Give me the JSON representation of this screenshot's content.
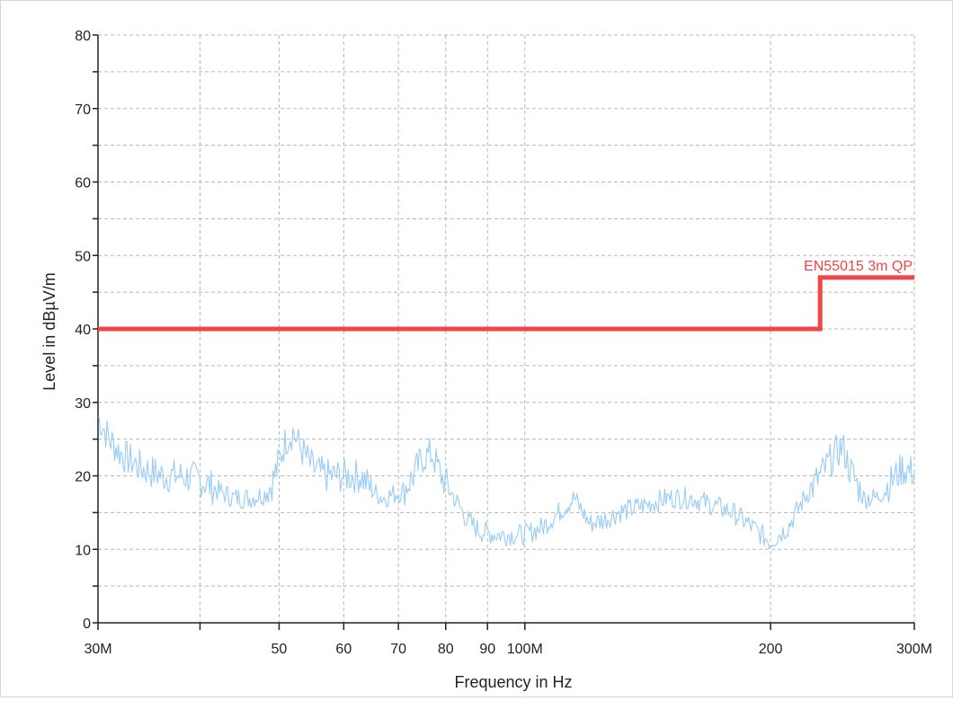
{
  "chart_data": {
    "type": "line",
    "title": "",
    "xlabel": "Frequency in Hz",
    "ylabel": "Level in dBµV/m",
    "x_scale": "log",
    "xlim": [
      30000000,
      300000000
    ],
    "ylim": [
      0,
      80
    ],
    "grid": true,
    "y_ticks": [
      0,
      10,
      20,
      30,
      40,
      50,
      60,
      70,
      80
    ],
    "x_ticks": [
      {
        "value": 30000000,
        "label": "30M"
      },
      {
        "value": 40000000,
        "label": ""
      },
      {
        "value": 50000000,
        "label": "50"
      },
      {
        "value": 60000000,
        "label": "60"
      },
      {
        "value": 70000000,
        "label": "70"
      },
      {
        "value": 80000000,
        "label": "80"
      },
      {
        "value": 90000000,
        "label": "90"
      },
      {
        "value": 100000000,
        "label": "100M"
      },
      {
        "value": 200000000,
        "label": "200"
      },
      {
        "value": 300000000,
        "label": "300M"
      }
    ],
    "series": [
      {
        "name": "",
        "role": "measurement",
        "color": "#99ccf5",
        "x": [
          30000000,
          31000000,
          32000000,
          33000000,
          34000000,
          35000000,
          36000000,
          38000000,
          40000000,
          42000000,
          44000000,
          46000000,
          48000000,
          49000000,
          50000000,
          51000000,
          52000000,
          53000000,
          55000000,
          57000000,
          59000000,
          61000000,
          63000000,
          65000000,
          67000000,
          69000000,
          71000000,
          73000000,
          75000000,
          77000000,
          79000000,
          82000000,
          85000000,
          88000000,
          92000000,
          96000000,
          100000000,
          105000000,
          110000000,
          115000000,
          120000000,
          125000000,
          130000000,
          140000000,
          150000000,
          160000000,
          170000000,
          180000000,
          190000000,
          200000000,
          210000000,
          220000000,
          230000000,
          240000000,
          245000000,
          250000000,
          260000000,
          270000000,
          280000000,
          290000000,
          300000000
        ],
        "y": [
          28,
          25,
          23,
          22,
          21,
          20.5,
          20,
          20,
          19.5,
          18,
          17,
          17,
          17.5,
          19,
          22,
          25,
          26,
          24,
          21,
          20,
          20,
          20,
          20,
          18,
          17,
          17.5,
          18,
          20,
          22.5,
          23,
          20,
          17,
          14,
          12.5,
          12,
          12,
          12,
          13,
          15,
          17,
          13.5,
          14,
          15,
          16,
          17,
          17,
          16,
          15,
          13,
          11,
          13,
          17,
          20,
          23,
          24,
          21,
          17,
          17,
          19,
          21,
          20.5
        ]
      },
      {
        "name": "EN55015 3m QP",
        "role": "limit",
        "color": "#f24545",
        "x": [
          30000000,
          230000000,
          230000000,
          300000000
        ],
        "y": [
          40,
          40,
          47,
          47
        ]
      }
    ]
  }
}
